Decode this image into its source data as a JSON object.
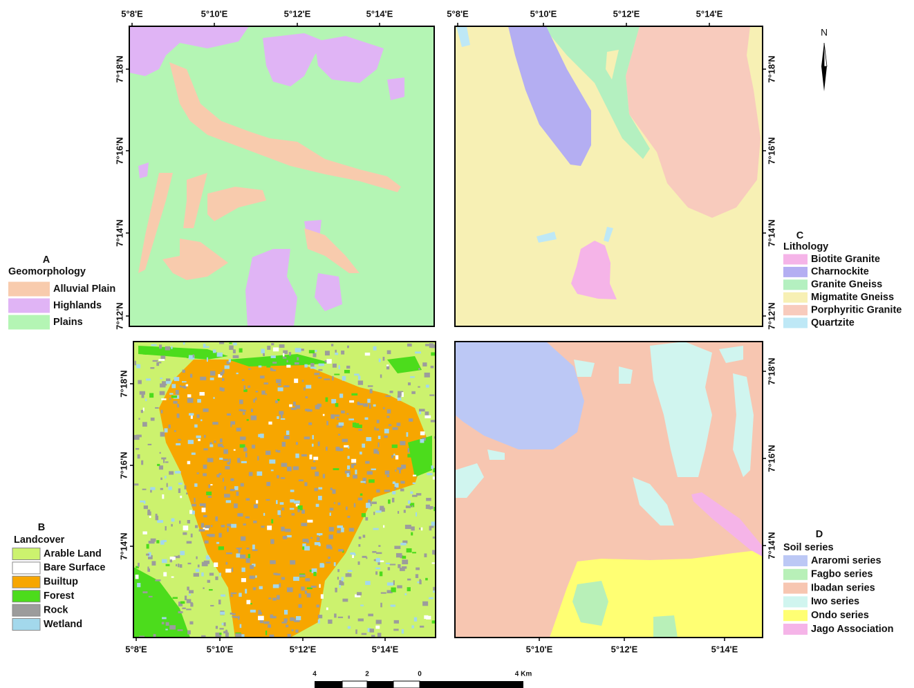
{
  "panels": [
    {
      "letter": "A",
      "legend_title": "Geomorphology",
      "legend": [
        {
          "label": "Alluvial Plain",
          "color": "#f8cbad"
        },
        {
          "label": "Highlands",
          "color": "#e0b4f5"
        },
        {
          "label": "Plains",
          "color": "#b4f5b4"
        }
      ],
      "lon_labels": [
        "5°8'E",
        "5°10'E",
        "5°12'E",
        "5°14'E"
      ],
      "lat_labels": [
        "7°18'N",
        "7°16'N",
        "7°14'N",
        "7°12'N"
      ]
    },
    {
      "letter": "B",
      "legend_title": "Landcover",
      "legend": [
        {
          "label": "Arable Land",
          "color": "#ccf26e"
        },
        {
          "label": "Bare Surface",
          "color": "#ffffff"
        },
        {
          "label": "Builtup",
          "color": "#f7a600"
        },
        {
          "label": "Forest",
          "color": "#4cdc1c"
        },
        {
          "label": "Rock",
          "color": "#9c9c9c"
        },
        {
          "label": "Wetland",
          "color": "#a3d8ec"
        }
      ],
      "lon_labels": [
        "5°8'E",
        "5°10'E",
        "5°12'E",
        "5°14'E"
      ],
      "lat_labels": [
        "7°18'N",
        "7°16'N",
        "7°14'N"
      ]
    },
    {
      "letter": "C",
      "legend_title": "Lithology",
      "legend": [
        {
          "label": "Biotite Granite",
          "color": "#f5b4e8"
        },
        {
          "label": "Charnockite",
          "color": "#b4aef2"
        },
        {
          "label": "Granite Gneiss",
          "color": "#b4f0c0"
        },
        {
          "label": "Migmatite Gneiss",
          "color": "#f7f0b4"
        },
        {
          "label": "Porphyritic Granite",
          "color": "#f8cbbd"
        },
        {
          "label": "Quartzite",
          "color": "#bee8f6"
        }
      ],
      "lon_labels": [
        "5°8'E",
        "5°10'E",
        "5°12'E",
        "5°14'E"
      ],
      "lat_labels": [
        "7°18'N",
        "7°16'N",
        "7°14'N",
        "7°12'N"
      ]
    },
    {
      "letter": "D",
      "legend_title": "Soil series",
      "legend": [
        {
          "label": "Araromi series",
          "color": "#bcc8f5"
        },
        {
          "label": "Fagbo series",
          "color": "#b8f0b8"
        },
        {
          "label": "Ibadan series",
          "color": "#f7c6b1"
        },
        {
          "label": "Iwo series",
          "color": "#d0f5ef"
        },
        {
          "label": "Ondo series",
          "color": "#ffff73"
        },
        {
          "label": "Jago Association",
          "color": "#f5b4e8"
        }
      ],
      "lon_labels": [
        "5°10'E",
        "5°12'E",
        "5°14'E"
      ],
      "lat_labels": [
        "7°18'N",
        "7°16'N",
        "7°14'N"
      ]
    }
  ],
  "north": "N",
  "scale_labels": [
    "4",
    "2",
    "0",
    "4 Km"
  ]
}
